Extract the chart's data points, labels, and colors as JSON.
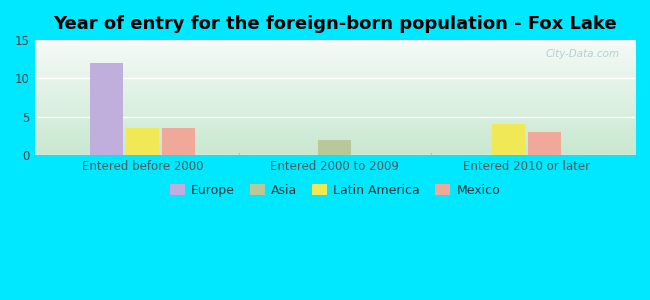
{
  "title": "Year of entry for the foreign-born population - Fox Lake",
  "categories": [
    "Entered before 2000",
    "Entered 2000 to 2009",
    "Entered 2010 or later"
  ],
  "colors": {
    "Europe": "#c0aedd",
    "Asia": "#b8c898",
    "Latin America": "#f0e855",
    "Mexico": "#f0a898"
  },
  "group_configs": [
    {
      "group": 0,
      "bars": [
        [
          "Europe",
          12
        ],
        [
          "Latin America",
          3.5
        ],
        [
          "Mexico",
          3.5
        ]
      ]
    },
    {
      "group": 1,
      "bars": [
        [
          "Asia",
          2
        ]
      ]
    },
    {
      "group": 2,
      "bars": [
        [
          "Latin America",
          4
        ],
        [
          "Mexico",
          3
        ]
      ]
    }
  ],
  "group_positions": [
    0.18,
    0.5,
    0.82
  ],
  "bar_width": 0.055,
  "bar_gap": 0.005,
  "ylim": [
    0,
    15
  ],
  "yticks": [
    0,
    5,
    10,
    15
  ],
  "background_outer": "#00e8ff",
  "grid_color": "#ffffff",
  "watermark": "City-Data.com",
  "title_fontsize": 13,
  "tick_fontsize": 8.5,
  "legend_fontsize": 9,
  "legend_series": [
    "Europe",
    "Asia",
    "Latin America",
    "Mexico"
  ]
}
